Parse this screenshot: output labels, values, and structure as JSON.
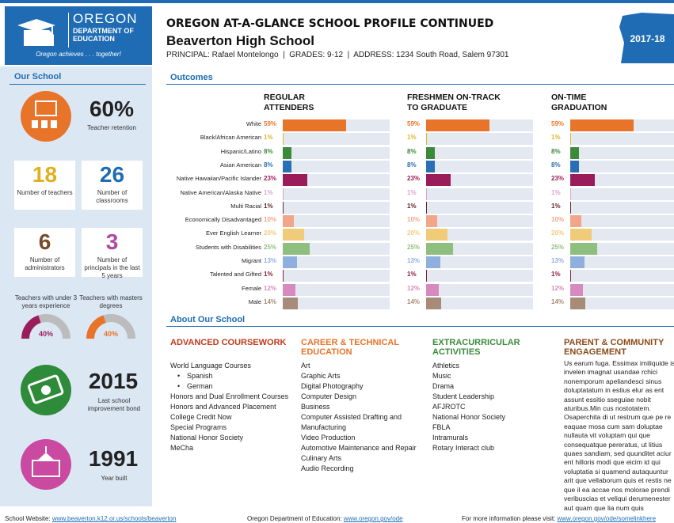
{
  "header": {
    "logo_name": "OREGON",
    "logo_department": "DEPARTMENT OF EDUCATION",
    "logo_tagline": "Oregon achieves . . . together!",
    "title": "OREGON AT-A-GLANCE SCHOOL PROFILE CONTINUED",
    "school": "Beaverton High School",
    "info": "PRINCIPAL: Rafael Montelongo  |  GRADES: 9-12  |  ADDRESS: 1234 South Road, Salem 97301",
    "year": "2017-18"
  },
  "sidebar": {
    "title": "Our School",
    "retention": {
      "value": "60%",
      "label": "Teacher retention"
    },
    "boxes": [
      {
        "value": "18",
        "label": "Number of teachers",
        "color": "#e0b020"
      },
      {
        "value": "26",
        "label": "Number of classrooms",
        "color": "#1f6cb4"
      },
      {
        "value": "6",
        "label": "Number of administrators",
        "color": "#7a4a2a"
      },
      {
        "value": "3",
        "label": "Number of principals in the last 5 years",
        "color": "#b04aa0"
      }
    ],
    "gauges": [
      {
        "label": "Teachers with under 3 years experience",
        "value": 40,
        "value_label": "40%",
        "color": "#9b1c5a"
      },
      {
        "label": "Teachers with masters degrees",
        "value": 40,
        "value_label": "40%",
        "color": "#e8742a"
      }
    ],
    "bond": {
      "value": "2015",
      "label": "Last school improvement bond"
    },
    "built": {
      "value": "1991",
      "label": "Year built"
    }
  },
  "outcomes": {
    "title": "Outcomes",
    "xlim": [
      0,
      100
    ],
    "groups": [
      "White",
      "Black/African American",
      "Hispanic/Latino",
      "Asian American",
      "Native Hawaiian/Pacific Islander",
      "Native American/Alaska Native",
      "Multi Racial",
      "Economically Disadvantaged",
      "Ever English Learner",
      "Students with Disabilities",
      "Migrant",
      "Talented and Gifted",
      "Female",
      "Male"
    ],
    "colors": [
      "#e8742a",
      "#d9b62a",
      "#3a8a3a",
      "#2a6fb5",
      "#9b1c5a",
      "#d8a6cc",
      "#5a2a2a",
      "#f3a58a",
      "#f0cc7a",
      "#8fbf7f",
      "#8fb0dc",
      "#8a1c3a",
      "#d68ac0",
      "#a88a78"
    ],
    "panels": [
      {
        "title_lines": [
          "REGULAR",
          "ATTENDERS"
        ],
        "values": [
          59,
          1,
          8,
          8,
          23,
          1,
          1,
          10,
          20,
          25,
          13,
          1,
          12,
          14
        ],
        "value_labels": [
          "59%",
          "1%",
          "8%",
          "8%",
          "23%",
          "1%",
          "1%",
          "10%",
          "20%",
          "25%",
          "13%",
          "1%",
          "12%",
          "14%"
        ]
      },
      {
        "title_lines": [
          "FRESHMEN ON-TRACK",
          "TO GRADUATE"
        ],
        "values": [
          59,
          1,
          8,
          8,
          23,
          1,
          1,
          10,
          20,
          25,
          13,
          1,
          12,
          14
        ],
        "value_labels": [
          "59%",
          "1%",
          "8%",
          "8%",
          "23%",
          "1%",
          "1%",
          "10%",
          "20%",
          "25%",
          "13%",
          "1%",
          "12%",
          "14%"
        ]
      },
      {
        "title_lines": [
          "ON-TIME",
          "GRADUATION"
        ],
        "values": [
          59,
          1,
          8,
          8,
          23,
          1,
          1,
          10,
          20,
          25,
          13,
          1,
          12,
          14
        ],
        "value_labels": [
          "59%",
          "1%",
          "8%",
          "8%",
          "23%",
          "1%",
          "1%",
          "10%",
          "20%",
          "25%",
          "13%",
          "1%",
          "12%",
          "14%"
        ]
      }
    ]
  },
  "about": {
    "title": "About Our School",
    "columns": [
      {
        "heading": "ADVANCED COURSEWORK",
        "color": "#c0391b",
        "items": [
          {
            "text": "World Language Courses",
            "sub": [
              "Spanish",
              "German"
            ]
          },
          "Honors and Dual Enrollment Courses",
          "Honors and Advanced Placement",
          "College Credit Now",
          "Special Programs",
          "National Honor Society",
          "MeCha"
        ]
      },
      {
        "heading": "CAREER & TECHNICAL EDUCATION",
        "color": "#e8742a",
        "items": [
          "Art",
          "Graphic Arts",
          "Digital Photography",
          "Computer Design",
          "Business",
          "Computer Assisted Drafting and Manufacturing",
          "Video Production",
          "Automotive Maintenance and Repair",
          "Culinary Arts",
          "Audio Recording"
        ]
      },
      {
        "heading": "EXTRACURRICULAR ACTIVITIES",
        "color": "#3a8a3a",
        "items": [
          "Athletics",
          "Music",
          "Drama",
          "Student Leadership",
          "AFJROTC",
          "National Honor Society",
          "FBLA",
          "Intramurals",
          "Rotary Interact club"
        ]
      },
      {
        "heading": "PARENT & COMMUNITY ENGAGEMENT",
        "color": "#8a4a1a",
        "paragraph": "Us earum fuga. Essimax imiliquide is invelen imagnat usandae rchici nonemporum apeliandesci sinus doluptatatum in estius elur as ent assunt essitio sseguiae nobit aturibus.Min cus nostotatem. Osaperchita di ut restrum que pe re eaquae mosa cum sam doluptae nullauta vit voluptam qui que consequatque pereratus, ut litius quaes sandiam, sed quunditet aciur ent hilloris modi que eicim id qui voluptatia si quamend autaquuntur arit que vellaborum quis et restis ne que il ea accae nos molorae prendi veribuscias et veliqui derumenester aut quam que lia num quis"
      }
    ]
  },
  "footer": [
    {
      "label": "School Website:",
      "link": "www.beaverton.k12.or.us/schools/beaverton"
    },
    {
      "label": "Oregon Department of Education:",
      "link": "www.oregon.gov/ode"
    },
    {
      "label": "For more information please visit:",
      "link": "www.oregon.gov/ode/somelinkhere"
    }
  ]
}
